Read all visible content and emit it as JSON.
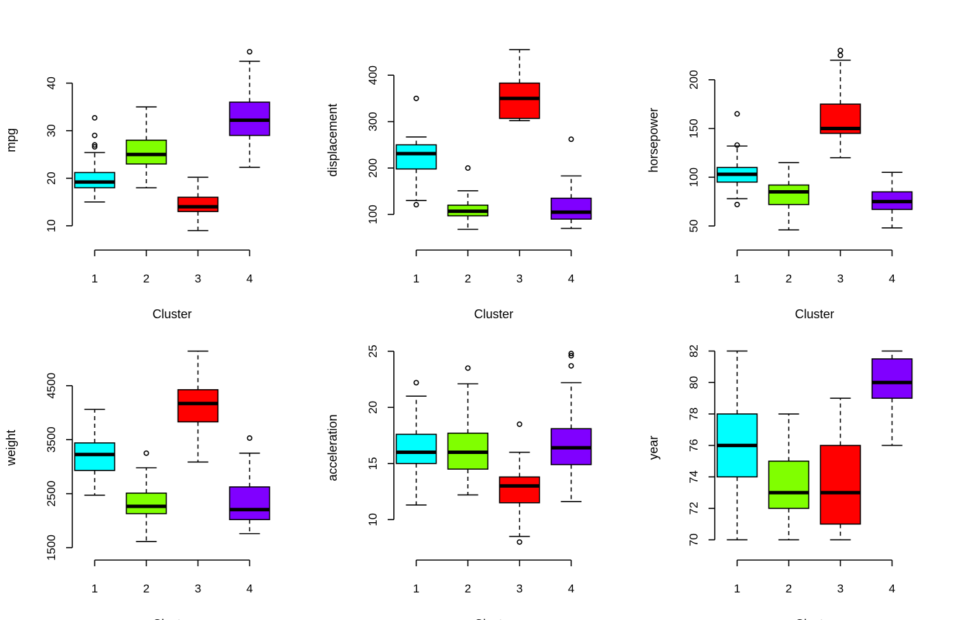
{
  "colors": [
    "#00FFFF",
    "#80FF00",
    "#FF0000",
    "#8000FF"
  ],
  "chart_data": [
    {
      "type": "boxplot",
      "xlabel": "Cluster",
      "ylabel": "mpg",
      "categories": [
        "1",
        "2",
        "3",
        "4"
      ],
      "yticks": [
        10,
        20,
        30,
        40
      ],
      "ytick_labels": [
        "10",
        "20",
        "30",
        "40"
      ],
      "ylim": [
        7.5,
        48.5
      ],
      "boxes": [
        {
          "lo": 15,
          "q1": 18,
          "med": 19.2,
          "q3": 21.2,
          "hi": 25.4,
          "outliers": [
            26.6,
            27,
            29,
            32.7
          ]
        },
        {
          "lo": 18,
          "q1": 23,
          "med": 25,
          "q3": 28,
          "hi": 35,
          "outliers": []
        },
        {
          "lo": 9,
          "q1": 13,
          "med": 14,
          "q3": 16,
          "hi": 20.2,
          "outliers": []
        },
        {
          "lo": 22.3,
          "q1": 29,
          "med": 32.2,
          "q3": 36,
          "hi": 44.6,
          "outliers": [
            46.6
          ]
        }
      ]
    },
    {
      "type": "boxplot",
      "xlabel": "Cluster",
      "ylabel": "displacement",
      "categories": [
        "1",
        "2",
        "3",
        "4"
      ],
      "yticks": [
        100,
        200,
        300,
        400
      ],
      "ytick_labels": [
        "100",
        "200",
        "300",
        "400"
      ],
      "ylim": [
        50,
        470
      ],
      "boxes": [
        {
          "lo": 130,
          "q1": 198,
          "med": 231,
          "q3": 250,
          "hi": 267,
          "outliers": [
            121,
            350
          ]
        },
        {
          "lo": 68,
          "q1": 97,
          "med": 107,
          "q3": 120,
          "hi": 151,
          "outliers": [
            200
          ]
        },
        {
          "lo": 302,
          "q1": 307,
          "med": 350,
          "q3": 383,
          "hi": 455,
          "outliers": []
        },
        {
          "lo": 70,
          "q1": 90,
          "med": 105,
          "q3": 135,
          "hi": 183,
          "outliers": [
            262
          ]
        }
      ]
    },
    {
      "type": "boxplot",
      "xlabel": "Cluster",
      "ylabel": "horsepower",
      "categories": [
        "1",
        "2",
        "3",
        "4"
      ],
      "yticks": [
        50,
        100,
        150,
        200
      ],
      "ytick_labels": [
        "50",
        "100",
        "150",
        "200"
      ],
      "ylim": [
        38,
        238
      ],
      "boxes": [
        {
          "lo": 78,
          "q1": 95,
          "med": 103,
          "q3": 110,
          "hi": 132,
          "outliers": [
            72,
            133,
            165
          ]
        },
        {
          "lo": 46,
          "q1": 72,
          "med": 85,
          "q3": 92,
          "hi": 115,
          "outliers": []
        },
        {
          "lo": 120,
          "q1": 145,
          "med": 150,
          "q3": 175,
          "hi": 220,
          "outliers": [
            225,
            230
          ]
        },
        {
          "lo": 48,
          "q1": 67,
          "med": 75,
          "q3": 85,
          "hi": 105,
          "outliers": []
        }
      ]
    },
    {
      "type": "boxplot",
      "xlabel": "Cluster",
      "ylabel": "weight",
      "categories": [
        "1",
        "2",
        "3",
        "4"
      ],
      "yticks": [
        1500,
        2500,
        3500,
        4500
      ],
      "ytick_labels": [
        "1500",
        "2500",
        "3500",
        "4500"
      ],
      "ylim": [
        1500,
        5200
      ],
      "boxes": [
        {
          "lo": 2472,
          "q1": 2930,
          "med": 3225,
          "q3": 3440,
          "hi": 4060,
          "outliers": []
        },
        {
          "lo": 1613,
          "q1": 2130,
          "med": 2265,
          "q3": 2510,
          "hi": 2980,
          "outliers": [
            3250
          ]
        },
        {
          "lo": 3086,
          "q1": 3830,
          "med": 4170,
          "q3": 4425,
          "hi": 5140,
          "outliers": []
        },
        {
          "lo": 1760,
          "q1": 2020,
          "med": 2205,
          "q3": 2625,
          "hi": 3250,
          "outliers": [
            3530
          ]
        }
      ]
    },
    {
      "type": "boxplot",
      "xlabel": "Cluster",
      "ylabel": "acceleration",
      "categories": [
        "1",
        "2",
        "3",
        "4"
      ],
      "yticks": [
        10,
        15,
        20,
        25
      ],
      "ytick_labels": [
        "10",
        "15",
        "20",
        "25"
      ],
      "ylim": [
        7.5,
        25.3
      ],
      "boxes": [
        {
          "lo": 11.3,
          "q1": 15,
          "med": 16,
          "q3": 17.6,
          "hi": 21,
          "outliers": [
            22.2
          ]
        },
        {
          "lo": 12.2,
          "q1": 14.5,
          "med": 16,
          "q3": 17.7,
          "hi": 22.1,
          "outliers": [
            23.5
          ]
        },
        {
          "lo": 8.5,
          "q1": 11.5,
          "med": 13,
          "q3": 13.8,
          "hi": 16,
          "outliers": [
            8,
            18.5
          ]
        },
        {
          "lo": 11.6,
          "q1": 14.9,
          "med": 16.4,
          "q3": 18.1,
          "hi": 22.2,
          "outliers": [
            23.7,
            24.6,
            24.8
          ]
        }
      ]
    },
    {
      "type": "boxplot",
      "xlabel": "Cluster",
      "ylabel": "year",
      "categories": [
        "1",
        "2",
        "3",
        "4"
      ],
      "yticks": [
        70,
        72,
        74,
        76,
        78,
        80,
        82
      ],
      "ytick_labels": [
        "70",
        "72",
        "74",
        "76",
        "78",
        "80",
        "82"
      ],
      "ylim": [
        69.5,
        82.2
      ],
      "boxes": [
        {
          "lo": 70,
          "q1": 74,
          "med": 76,
          "q3": 78,
          "hi": 82,
          "outliers": []
        },
        {
          "lo": 70,
          "q1": 72,
          "med": 73,
          "q3": 75,
          "hi": 78,
          "outliers": []
        },
        {
          "lo": 70,
          "q1": 71,
          "med": 73,
          "q3": 76,
          "hi": 79,
          "outliers": []
        },
        {
          "lo": 76,
          "q1": 79,
          "med": 80,
          "q3": 81.5,
          "hi": 82,
          "outliers": []
        }
      ]
    }
  ]
}
